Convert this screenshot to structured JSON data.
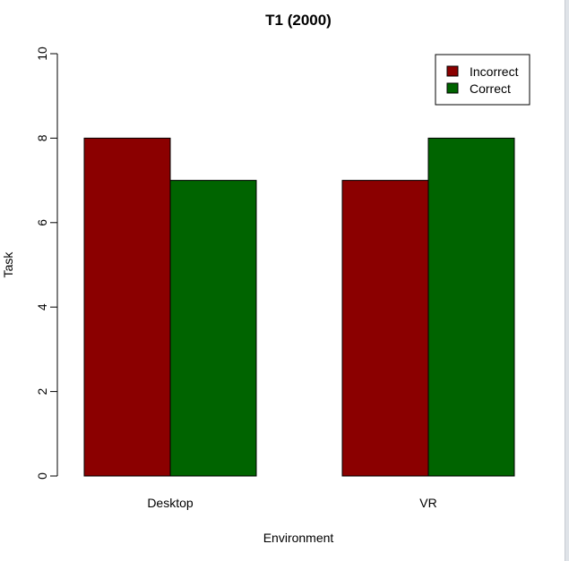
{
  "chart_data": {
    "type": "bar",
    "title": "T1 (2000)",
    "xlabel": "Environment",
    "ylabel": "Task",
    "categories": [
      "Desktop",
      "VR"
    ],
    "series": [
      {
        "name": "Incorrect",
        "color": "#8B0000",
        "values": [
          8,
          7
        ]
      },
      {
        "name": "Correct",
        "color": "#006400",
        "values": [
          7,
          8
        ]
      }
    ],
    "ylim": [
      0,
      10
    ],
    "yticks": [
      "0",
      "2",
      "4",
      "6",
      "8",
      "10"
    ],
    "grid": false,
    "legend_position": "top-right",
    "bar_mode": "grouped"
  }
}
